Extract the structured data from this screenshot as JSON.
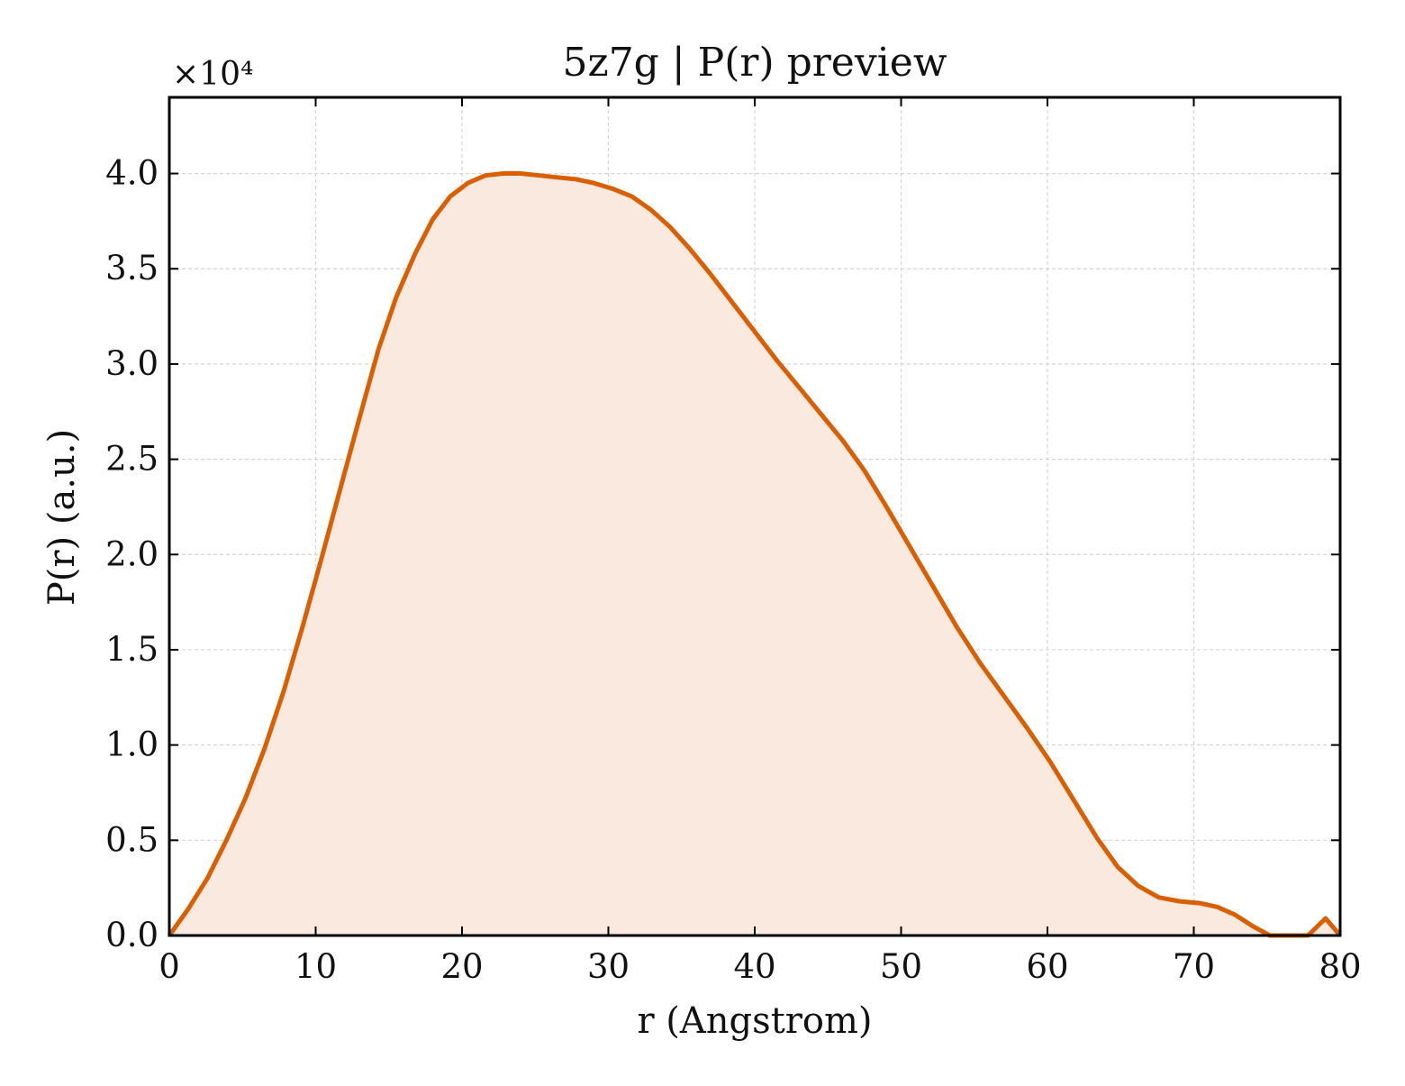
{
  "chart_data": {
    "type": "area",
    "title": "5z7g | P(r) preview",
    "xlabel": "r (Angstrom)",
    "ylabel": "P(r) (a.u.)",
    "y_scale_label": "×10⁴",
    "xlim": [
      0,
      80
    ],
    "ylim": [
      0,
      4.4
    ],
    "xticks": [
      0,
      10,
      20,
      30,
      40,
      50,
      60,
      70,
      80
    ],
    "yticks": [
      "0.0",
      "0.5",
      "1.0",
      "1.5",
      "2.0",
      "2.5",
      "3.0",
      "3.5",
      "4.0"
    ],
    "grid": true,
    "line_color": "#d95f02",
    "fill_color": "#f9e9de",
    "x": [
      0,
      1.3,
      2.6,
      3.9,
      5.2,
      6.5,
      7.8,
      9.1,
      10.4,
      11.7,
      13.0,
      14.3,
      15.5,
      16.8,
      18.0,
      19.2,
      20.4,
      21.6,
      22.8,
      24.0,
      25.3,
      26.5,
      27.8,
      29.0,
      30.3,
      31.6,
      32.9,
      34.2,
      35.5,
      36.9,
      38.4,
      40.0,
      41.5,
      43.0,
      44.5,
      46.0,
      47.5,
      49.0,
      50.6,
      52.2,
      53.8,
      55.4,
      57.0,
      58.6,
      60.2,
      61.8,
      63.4,
      64.8,
      66.2,
      67.6,
      69.0,
      70.4,
      71.6,
      72.8,
      74.0,
      75.2,
      76.6,
      77.8,
      79.0,
      80.0
    ],
    "values": [
      0.0,
      0.14,
      0.3,
      0.5,
      0.72,
      0.98,
      1.28,
      1.62,
      1.98,
      2.35,
      2.72,
      3.08,
      3.35,
      3.58,
      3.76,
      3.88,
      3.95,
      3.99,
      4.0,
      4.0,
      3.99,
      3.98,
      3.97,
      3.95,
      3.92,
      3.88,
      3.81,
      3.72,
      3.61,
      3.48,
      3.33,
      3.17,
      3.02,
      2.88,
      2.74,
      2.6,
      2.44,
      2.25,
      2.04,
      1.83,
      1.62,
      1.43,
      1.26,
      1.09,
      0.91,
      0.71,
      0.51,
      0.36,
      0.26,
      0.2,
      0.18,
      0.17,
      0.15,
      0.11,
      0.05,
      0.0,
      0.0,
      0.0,
      0.09,
      0.0
    ]
  }
}
